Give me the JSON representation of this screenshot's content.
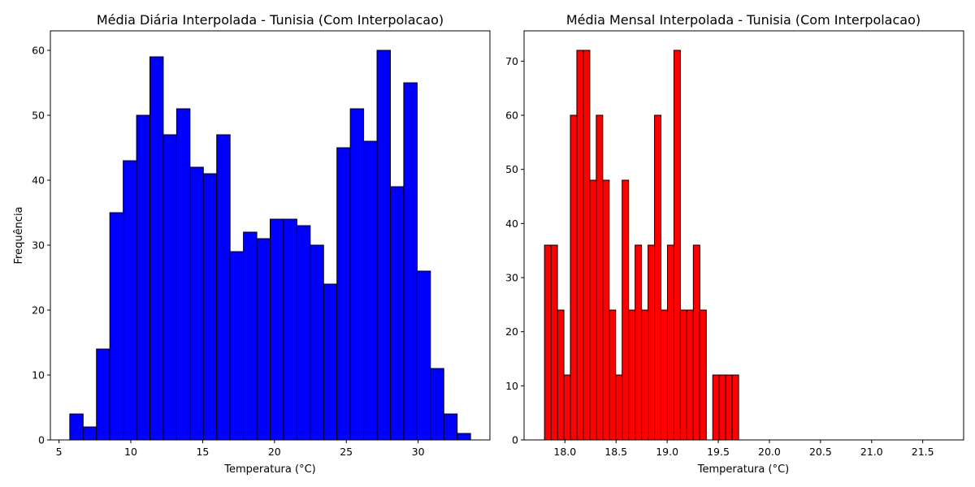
{
  "chart_data": [
    {
      "type": "bar",
      "title": "Média Diária Interpolada - Tunisia (Com Interpolacao)",
      "xlabel": "Temperatura (°C)",
      "ylabel": "Frequência",
      "color": "#0000ff",
      "edge_color": "#000000",
      "xlim": [
        4.4,
        35.0
      ],
      "ylim": [
        0,
        63
      ],
      "x_ticks": [
        5,
        10,
        15,
        20,
        25,
        30
      ],
      "y_ticks": [
        0,
        10,
        20,
        30,
        40,
        50,
        60
      ],
      "bin_start": 5.75,
      "bin_width": 0.93,
      "values": [
        4,
        2,
        14,
        35,
        43,
        50,
        59,
        47,
        51,
        42,
        41,
        47,
        29,
        32,
        31,
        34,
        34,
        33,
        30,
        24,
        45,
        51,
        46,
        60,
        39,
        55,
        26,
        11,
        4,
        1
      ],
      "grid": false
    },
    {
      "type": "bar",
      "title": "Média Mensal Interpolada - Tunisia (Com Interpolacao)",
      "xlabel": "Temperatura (°C)",
      "ylabel": "",
      "color": "#ff0000",
      "edge_color": "#000000",
      "xlim": [
        17.6,
        21.9
      ],
      "ylim": [
        0,
        75.6
      ],
      "x_ticks": [
        18.0,
        18.5,
        19.0,
        19.5,
        20.0,
        20.5,
        21.0,
        21.5
      ],
      "y_ticks": [
        0,
        10,
        20,
        30,
        40,
        50,
        60,
        70
      ],
      "bin_start": 17.8,
      "bin_width": 0.0633,
      "values": [
        36,
        36,
        24,
        12,
        60,
        72,
        72,
        48,
        60,
        48,
        24,
        12,
        48,
        24,
        36,
        24,
        36,
        60,
        24,
        36,
        72,
        24,
        24,
        36,
        24,
        0,
        12,
        12,
        12,
        12
      ],
      "grid": false
    }
  ]
}
